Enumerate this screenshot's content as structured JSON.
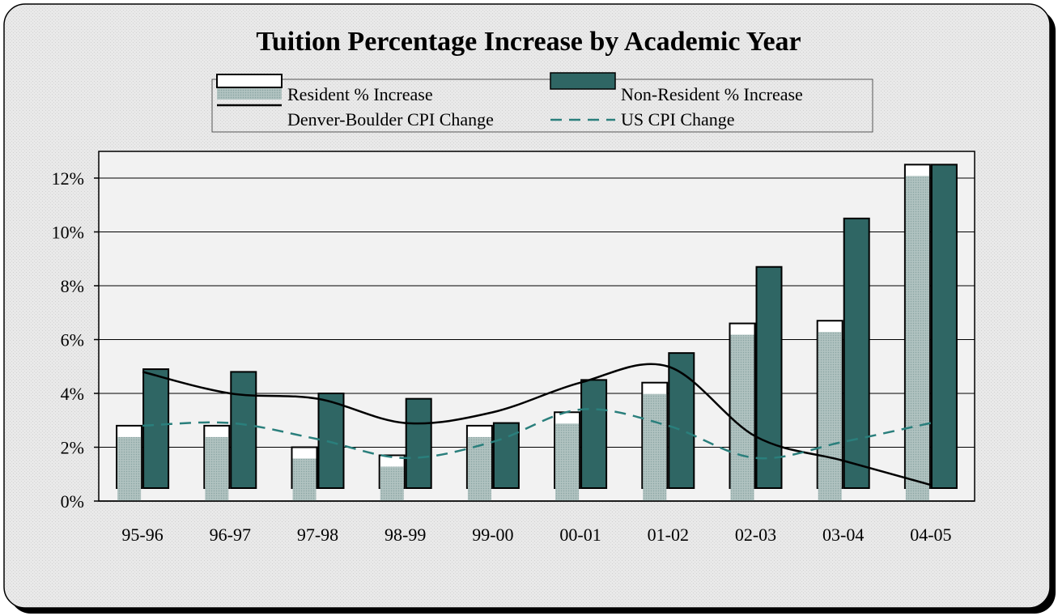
{
  "chart_data": {
    "type": "bar",
    "title": "Tuition Percentage Increase by Academic Year",
    "categories": [
      "95-96",
      "96-97",
      "97-98",
      "98-99",
      "99-00",
      "00-01",
      "01-02",
      "02-03",
      "03-04",
      "04-05"
    ],
    "series": [
      {
        "name": "Resident % Increase",
        "kind": "bar",
        "values": [
          2.8,
          2.8,
          2.0,
          1.7,
          2.8,
          3.3,
          4.4,
          6.6,
          6.7,
          12.5
        ]
      },
      {
        "name": "Non-Resident % Increase",
        "kind": "bar",
        "values": [
          4.9,
          4.8,
          4.0,
          3.8,
          2.9,
          4.5,
          5.5,
          8.7,
          10.5,
          12.5
        ]
      },
      {
        "name": "Denver-Boulder CPI Change",
        "kind": "line",
        "style": "solid",
        "values": [
          4.8,
          4.0,
          3.8,
          2.9,
          3.3,
          4.4,
          5.0,
          2.4,
          1.5,
          0.6
        ]
      },
      {
        "name": "US CPI Change",
        "kind": "line",
        "style": "dashed",
        "values": [
          2.8,
          2.9,
          2.3,
          1.6,
          2.2,
          3.4,
          2.8,
          1.6,
          2.2,
          2.9
        ]
      }
    ],
    "y_ticks": [
      "0%",
      "2%",
      "4%",
      "6%",
      "8%",
      "10%",
      "12%"
    ],
    "ylim": [
      0,
      12
    ],
    "grid": true,
    "legend_position": "top",
    "colors": {
      "resident": "#ffffff",
      "resident_shade": "#a9bdbb",
      "non_resident": "#2f6664",
      "denver_line": "#000000",
      "us_line": "#2a7f7c",
      "panel": "#e8e8e8",
      "plot_area": "#f2f2f2"
    }
  }
}
